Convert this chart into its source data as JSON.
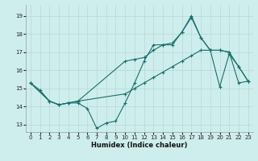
{
  "xlabel": "Humidex (Indice chaleur)",
  "background_color": "#ceeeed",
  "grid_color": "#b8d8d8",
  "line_color": "#1a6e6a",
  "x_ticks": [
    0,
    1,
    2,
    3,
    4,
    5,
    6,
    7,
    8,
    9,
    10,
    11,
    12,
    13,
    14,
    15,
    16,
    17,
    18,
    19,
    20,
    21,
    22,
    23
  ],
  "y_ticks": [
    13,
    14,
    15,
    16,
    17,
    18,
    19
  ],
  "xlim": [
    -0.5,
    23.5
  ],
  "ylim": [
    12.6,
    19.6
  ],
  "line1_x": [
    0,
    1,
    2,
    3,
    4,
    5,
    6,
    7,
    8,
    9,
    10,
    11,
    12,
    13,
    14,
    15,
    16,
    17,
    18,
    19,
    20,
    21,
    22,
    23
  ],
  "line1_y": [
    15.3,
    14.9,
    14.3,
    14.1,
    14.2,
    14.2,
    13.9,
    12.8,
    13.1,
    13.2,
    14.2,
    15.3,
    16.5,
    17.4,
    17.4,
    17.5,
    18.1,
    18.9,
    17.8,
    17.1,
    15.1,
    16.9,
    16.2,
    15.4
  ],
  "line2_x": [
    0,
    2,
    3,
    4,
    5,
    10,
    11,
    12,
    13,
    14,
    15,
    16,
    17,
    18,
    19,
    20,
    21,
    22,
    23
  ],
  "line2_y": [
    15.3,
    14.3,
    14.1,
    14.2,
    14.3,
    14.7,
    15.0,
    15.3,
    15.6,
    15.9,
    16.2,
    16.5,
    16.8,
    17.1,
    17.1,
    17.1,
    17.0,
    15.3,
    15.4
  ],
  "line3_x": [
    0,
    2,
    3,
    4,
    5,
    10,
    11,
    12,
    13,
    14,
    15,
    16,
    17,
    18,
    19,
    20,
    21,
    22,
    23
  ],
  "line3_y": [
    15.3,
    14.3,
    14.1,
    14.2,
    14.3,
    16.5,
    16.6,
    16.7,
    17.1,
    17.4,
    17.4,
    18.1,
    19.0,
    17.8,
    17.1,
    17.1,
    17.0,
    16.2,
    15.4
  ]
}
